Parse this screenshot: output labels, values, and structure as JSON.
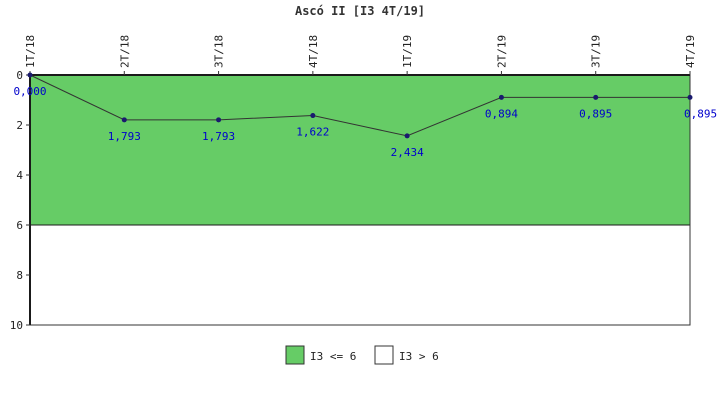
{
  "chart_data": {
    "type": "line",
    "title": "Ascó II [I3 4T/19]",
    "categories": [
      "1T/18",
      "2T/18",
      "3T/18",
      "4T/18",
      "1T/19",
      "2T/19",
      "3T/19",
      "4T/19"
    ],
    "series": [
      {
        "values": [
          0.0,
          1.793,
          1.793,
          1.622,
          2.434,
          0.894,
          0.895,
          0.895
        ],
        "labels": [
          "0,000",
          "1,793",
          "1,793",
          "1,622",
          "2,434",
          "0,894",
          "0,895",
          "0,895"
        ],
        "color": "#1a1a6e"
      }
    ],
    "y_axis": {
      "ticks": [
        "0",
        "2",
        "4",
        "6",
        "8",
        "10"
      ],
      "ylim": [
        0,
        10
      ],
      "inverted": true
    },
    "x_labels_position": "top",
    "threshold": 6,
    "bands": [
      {
        "label": "I3 <= 6",
        "from": 0,
        "to": 6,
        "color": "#66cc66"
      },
      {
        "label": "I3 > 6",
        "from": 6,
        "to": 10,
        "color": "#ffffff"
      }
    ],
    "legend": {
      "placement": "bottom-center"
    },
    "grid": false
  }
}
